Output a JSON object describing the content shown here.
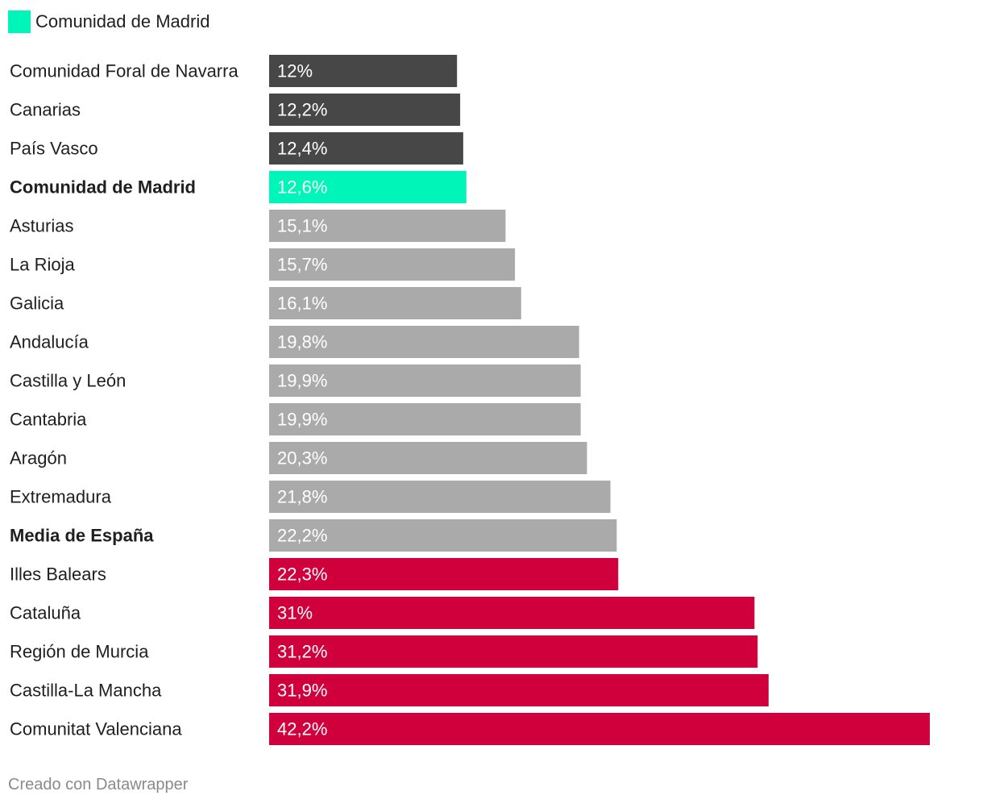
{
  "legend": {
    "label": "Comunidad de Madrid",
    "color": "#00f5b8"
  },
  "footer": {
    "credit": "Creado con Datawrapper"
  },
  "chart_data": {
    "type": "bar",
    "orientation": "horizontal",
    "categories": [
      "Comunidad Foral de Navarra",
      "Canarias",
      "País Vasco",
      "Comunidad de Madrid",
      "Asturias",
      "La Rioja",
      "Galicia",
      "Andalucía",
      "Castilla y León",
      "Cantabria",
      "Aragón",
      "Extremadura",
      "Media de España",
      "Illes Balears",
      "Cataluña",
      "Región de Murcia",
      "Castilla-La Mancha",
      "Comunitat Valenciana"
    ],
    "values": [
      12,
      12.2,
      12.4,
      12.6,
      15.1,
      15.7,
      16.1,
      19.8,
      19.9,
      19.9,
      20.3,
      21.8,
      22.2,
      22.3,
      31,
      31.2,
      31.9,
      42.2
    ],
    "value_labels": [
      "12%",
      "12,2%",
      "12,4%",
      "12,6%",
      "15,1%",
      "15,7%",
      "16,1%",
      "19,8%",
      "19,9%",
      "19,9%",
      "20,3%",
      "21,8%",
      "22,2%",
      "22,3%",
      "31%",
      "31,2%",
      "31,9%",
      "42,2%"
    ],
    "bar_colors": [
      "#474747",
      "#474747",
      "#474747",
      "#00f5b8",
      "#aaaaaa",
      "#aaaaaa",
      "#aaaaaa",
      "#aaaaaa",
      "#aaaaaa",
      "#aaaaaa",
      "#aaaaaa",
      "#aaaaaa",
      "#aaaaaa",
      "#d0003c",
      "#d0003c",
      "#d0003c",
      "#d0003c",
      "#d0003c"
    ],
    "bold_categories": [
      "Comunidad de Madrid",
      "Media de España"
    ],
    "title": "",
    "xlabel": "",
    "ylabel": "",
    "xlim": [
      0,
      42.2
    ],
    "grid": false,
    "legend_position": "top-left"
  }
}
